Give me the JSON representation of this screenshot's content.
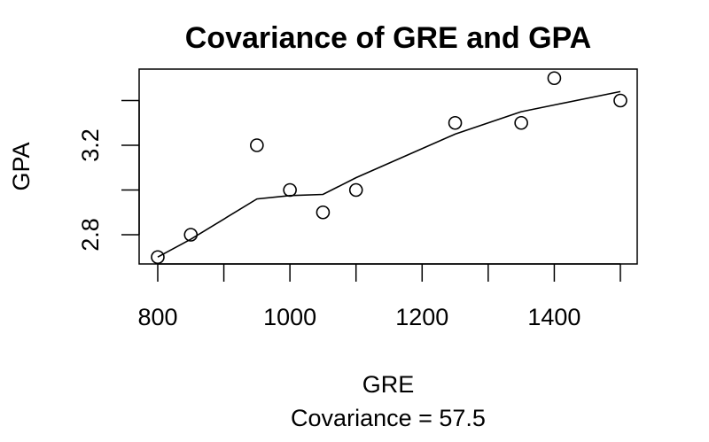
{
  "chart_data": {
    "type": "scatter",
    "title": "Covariance of GRE and GPA",
    "xlabel": "GRE",
    "ylabel": "GPA",
    "subtitle": "Covariance = 57.5",
    "xlim": [
      800,
      1500
    ],
    "ylim": [
      2.8,
      3.4
    ],
    "x_ticks": [
      800,
      900,
      1000,
      1100,
      1200,
      1300,
      1400,
      1500
    ],
    "x_tick_labels": [
      "800",
      "",
      "1000",
      "",
      "1200",
      "",
      "1400",
      ""
    ],
    "y_ticks": [
      2.8,
      3.0,
      3.2,
      3.4
    ],
    "y_tick_labels": [
      "2.8",
      "",
      "3.2",
      ""
    ],
    "grid": false,
    "points": [
      {
        "x": 800,
        "y": 2.7
      },
      {
        "x": 850,
        "y": 2.8
      },
      {
        "x": 950,
        "y": 3.2
      },
      {
        "x": 1000,
        "y": 3.0
      },
      {
        "x": 1050,
        "y": 2.9
      },
      {
        "x": 1100,
        "y": 3.0
      },
      {
        "x": 1250,
        "y": 3.3
      },
      {
        "x": 1350,
        "y": 3.3
      },
      {
        "x": 1400,
        "y": 3.5
      },
      {
        "x": 1500,
        "y": 3.4
      }
    ],
    "smoother": [
      {
        "x": 800,
        "y": 2.7
      },
      {
        "x": 850,
        "y": 2.78
      },
      {
        "x": 950,
        "y": 2.96
      },
      {
        "x": 1000,
        "y": 2.975
      },
      {
        "x": 1050,
        "y": 2.98
      },
      {
        "x": 1100,
        "y": 3.055
      },
      {
        "x": 1250,
        "y": 3.25
      },
      {
        "x": 1350,
        "y": 3.35
      },
      {
        "x": 1400,
        "y": 3.38
      },
      {
        "x": 1500,
        "y": 3.44
      }
    ]
  }
}
